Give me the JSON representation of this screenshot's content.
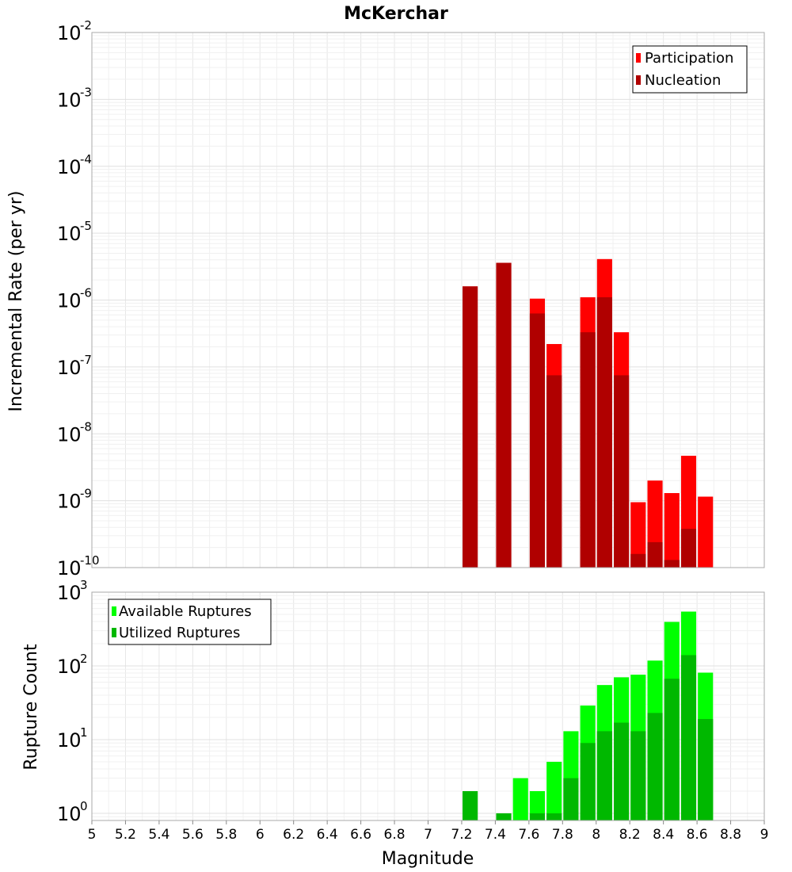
{
  "chart_data": [
    {
      "type": "bar",
      "title": "McKerchar",
      "xlabel": "",
      "ylabel": "Incremental Rate (per yr)",
      "log_y": true,
      "xlim": [
        5,
        9
      ],
      "ylim": [
        1e-10,
        0.01
      ],
      "grid": true,
      "legend_position": "top-right",
      "bar_width": 0.09,
      "x": [
        7.25,
        7.45,
        7.65,
        7.75,
        7.95,
        8.05,
        8.15,
        8.25,
        8.35,
        8.45,
        8.55,
        8.65
      ],
      "series": [
        {
          "name": "Participation",
          "color": "#ff0000",
          "values": [
            1.6e-06,
            3.6e-06,
            1.05e-06,
            2.2e-07,
            1.1e-06,
            4.1e-06,
            3.3e-07,
            9.5e-10,
            2e-09,
            1.3e-09,
            4.7e-09,
            1.15e-09
          ]
        },
        {
          "name": "Nucleation",
          "color": "#b00000",
          "values": [
            1.6e-06,
            3.6e-06,
            6.3e-07,
            7.5e-08,
            3.3e-07,
            1.1e-06,
            7.5e-08,
            1.6e-10,
            2.4e-10,
            1.3e-10,
            3.8e-10,
            null
          ]
        }
      ],
      "y_ticks": [
        {
          "base": "10",
          "exp": "-10",
          "value": 1e-10
        },
        {
          "base": "10",
          "exp": "-9",
          "value": 1e-09
        },
        {
          "base": "10",
          "exp": "-8",
          "value": 1e-08
        },
        {
          "base": "10",
          "exp": "-7",
          "value": 1e-07
        },
        {
          "base": "10",
          "exp": "-6",
          "value": 1e-06
        },
        {
          "base": "10",
          "exp": "-5",
          "value": 1e-05
        },
        {
          "base": "10",
          "exp": "-4",
          "value": 0.0001
        },
        {
          "base": "10",
          "exp": "-3",
          "value": 0.001
        },
        {
          "base": "10",
          "exp": "-2",
          "value": 0.01
        }
      ]
    },
    {
      "type": "bar",
      "title": "",
      "xlabel": "Magnitude",
      "ylabel": "Rupture Count",
      "log_y": true,
      "xlim": [
        5,
        9
      ],
      "ylim": [
        0.8,
        1000
      ],
      "grid": true,
      "legend_position": "top-left",
      "bar_width": 0.09,
      "x": [
        7.25,
        7.45,
        7.55,
        7.65,
        7.75,
        7.85,
        7.95,
        8.05,
        8.15,
        8.25,
        8.35,
        8.45,
        8.55,
        8.65
      ],
      "series": [
        {
          "name": "Available Ruptures",
          "color": "#00ff00",
          "values": [
            2,
            1,
            3,
            2,
            5,
            13,
            29,
            55,
            70,
            76,
            118,
            395,
            545,
            81
          ]
        },
        {
          "name": "Utilized Ruptures",
          "color": "#00b800",
          "values": [
            2,
            1,
            0,
            1,
            1,
            3,
            9,
            13,
            17,
            13,
            23,
            67,
            140,
            19
          ]
        }
      ],
      "x_ticks": [
        "5",
        "5.2",
        "5.4",
        "5.6",
        "5.8",
        "6",
        "6.2",
        "6.4",
        "6.6",
        "6.8",
        "7",
        "7.2",
        "7.4",
        "7.6",
        "7.8",
        "8",
        "8.2",
        "8.4",
        "8.6",
        "8.8",
        "9"
      ],
      "y_ticks": [
        {
          "base": "10",
          "exp": "0",
          "value": 1
        },
        {
          "base": "10",
          "exp": "1",
          "value": 10
        },
        {
          "base": "10",
          "exp": "2",
          "value": 100
        },
        {
          "base": "10",
          "exp": "3",
          "value": 1000
        }
      ]
    }
  ]
}
